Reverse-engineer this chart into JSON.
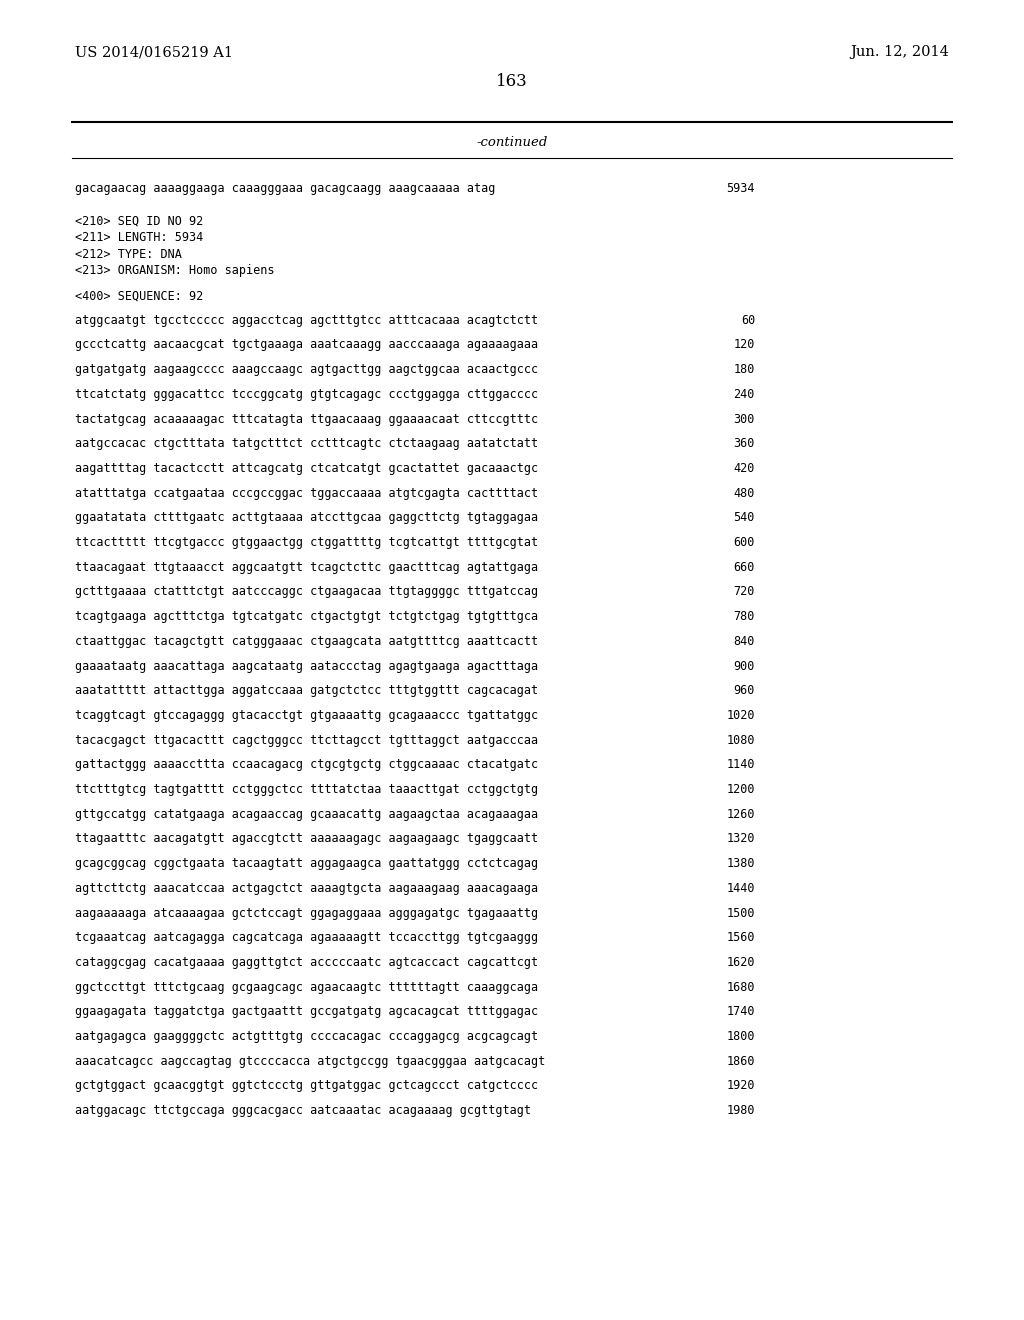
{
  "header_left": "US 2014/0165219 A1",
  "header_right": "Jun. 12, 2014",
  "page_number": "163",
  "continued_label": "-continued",
  "background_color": "#ffffff",
  "text_color": "#000000",
  "font_size": 8.5,
  "header_font_size": 10.5,
  "page_num_font_size": 12,
  "continued_font_size": 9.5,
  "content": [
    {
      "text": "gacagaacag aaaaggaaga caaagggaaa gacagcaagg aaagcaaaaa atag",
      "num": "5934",
      "type": "seq"
    },
    {
      "text": "",
      "type": "blank"
    },
    {
      "text": "",
      "type": "blank"
    },
    {
      "text": "<210> SEQ ID NO 92",
      "type": "meta"
    },
    {
      "text": "<211> LENGTH: 5934",
      "type": "meta"
    },
    {
      "text": "<212> TYPE: DNA",
      "type": "meta"
    },
    {
      "text": "<213> ORGANISM: Homo sapiens",
      "type": "meta"
    },
    {
      "text": "",
      "type": "blank"
    },
    {
      "text": "<400> SEQUENCE: 92",
      "type": "meta"
    },
    {
      "text": "",
      "type": "blank"
    },
    {
      "text": "atggcaatgt tgcctccccc aggacctcag agctttgtcc atttcacaaa acagtctctt",
      "num": "60",
      "type": "seq"
    },
    {
      "text": "",
      "type": "blank"
    },
    {
      "text": "gccctcattg aacaacgcat tgctgaaaga aaatcaaagg aacccaaaga agaaaagaaa",
      "num": "120",
      "type": "seq"
    },
    {
      "text": "",
      "type": "blank"
    },
    {
      "text": "gatgatgatg aagaagcccc aaagccaagc agtgacttgg aagctggcaa acaactgccc",
      "num": "180",
      "type": "seq"
    },
    {
      "text": "",
      "type": "blank"
    },
    {
      "text": "ttcatctatg gggacattcc tcccggcatg gtgtcagagc ccctggagga cttggacccc",
      "num": "240",
      "type": "seq"
    },
    {
      "text": "",
      "type": "blank"
    },
    {
      "text": "tactatgcag acaaaaagac tttcatagta ttgaacaaag ggaaaacaat cttccgtttc",
      "num": "300",
      "type": "seq"
    },
    {
      "text": "",
      "type": "blank"
    },
    {
      "text": "aatgccacac ctgctttata tatgctttct cctttcagtc ctctaagaag aatatctatt",
      "num": "360",
      "type": "seq"
    },
    {
      "text": "",
      "type": "blank"
    },
    {
      "text": "aagattttag tacactcctt attcagcatg ctcatcatgt gcactattet gacaaactgc",
      "num": "420",
      "type": "seq"
    },
    {
      "text": "",
      "type": "blank"
    },
    {
      "text": "atatttatga ccatgaataa cccgccggac tggaccaaaa atgtcgagta cacttttact",
      "num": "480",
      "type": "seq"
    },
    {
      "text": "",
      "type": "blank"
    },
    {
      "text": "ggaatatata cttttgaatc acttgtaaaa atccttgcaa gaggcttctg tgtaggagaa",
      "num": "540",
      "type": "seq"
    },
    {
      "text": "",
      "type": "blank"
    },
    {
      "text": "ttcacttttt ttcgtgaccc gtggaactgg ctggattttg tcgtcattgt ttttgcgtat",
      "num": "600",
      "type": "seq"
    },
    {
      "text": "",
      "type": "blank"
    },
    {
      "text": "ttaacagaat ttgtaaacct aggcaatgtt tcagctcttc gaactttcag agtattgaga",
      "num": "660",
      "type": "seq"
    },
    {
      "text": "",
      "type": "blank"
    },
    {
      "text": "gctttgaaaa ctatttctgt aatcccaggc ctgaagacaa ttgtaggggc tttgatccag",
      "num": "720",
      "type": "seq"
    },
    {
      "text": "",
      "type": "blank"
    },
    {
      "text": "tcagtgaaga agctttctga tgtcatgatc ctgactgtgt tctgtctgag tgtgtttgca",
      "num": "780",
      "type": "seq"
    },
    {
      "text": "",
      "type": "blank"
    },
    {
      "text": "ctaattggac tacagctgtt catgggaaac ctgaagcata aatgttttcg aaattcactt",
      "num": "840",
      "type": "seq"
    },
    {
      "text": "",
      "type": "blank"
    },
    {
      "text": "gaaaataatg aaacattaga aagcataatg aataccctag agagtgaaga agactttaga",
      "num": "900",
      "type": "seq"
    },
    {
      "text": "",
      "type": "blank"
    },
    {
      "text": "aaatattttt attacttgga aggatccaaa gatgctctcc tttgtggttt cagcacagat",
      "num": "960",
      "type": "seq"
    },
    {
      "text": "",
      "type": "blank"
    },
    {
      "text": "tcaggtcagt gtccagaggg gtacacctgt gtgaaaattg gcagaaaccc tgattatggc",
      "num": "1020",
      "type": "seq"
    },
    {
      "text": "",
      "type": "blank"
    },
    {
      "text": "tacacgagct ttgacacttt cagctgggcc ttcttagcct tgtttaggct aatgacccaa",
      "num": "1080",
      "type": "seq"
    },
    {
      "text": "",
      "type": "blank"
    },
    {
      "text": "gattactggg aaaaccttta ccaacagacg ctgcgtgctg ctggcaaaac ctacatgatc",
      "num": "1140",
      "type": "seq"
    },
    {
      "text": "",
      "type": "blank"
    },
    {
      "text": "ttctttgtcg tagtgatttt cctgggctcc ttttatctaa taaacttgat cctggctgtg",
      "num": "1200",
      "type": "seq"
    },
    {
      "text": "",
      "type": "blank"
    },
    {
      "text": "gttgccatgg catatgaaga acagaaccag gcaaacattg aagaagctaa acagaaagaa",
      "num": "1260",
      "type": "seq"
    },
    {
      "text": "",
      "type": "blank"
    },
    {
      "text": "ttagaatttc aacagatgtt agaccgtctt aaaaaagagc aagaagaagc tgaggcaatt",
      "num": "1320",
      "type": "seq"
    },
    {
      "text": "",
      "type": "blank"
    },
    {
      "text": "gcagcggcag cggctgaata tacaagtatt aggagaagca gaattatggg cctctcagag",
      "num": "1380",
      "type": "seq"
    },
    {
      "text": "",
      "type": "blank"
    },
    {
      "text": "agttcttctg aaacatccaa actgagctct aaaagtgcta aagaaagaag aaacagaaga",
      "num": "1440",
      "type": "seq"
    },
    {
      "text": "",
      "type": "blank"
    },
    {
      "text": "aagaaaaaga atcaaaagaa gctctccagt ggagaggaaa agggagatgc tgagaaattg",
      "num": "1500",
      "type": "seq"
    },
    {
      "text": "",
      "type": "blank"
    },
    {
      "text": "tcgaaatcag aatcagagga cagcatcaga agaaaaagtt tccaccttgg tgtcgaaggg",
      "num": "1560",
      "type": "seq"
    },
    {
      "text": "",
      "type": "blank"
    },
    {
      "text": "cataggcgag cacatgaaaa gaggttgtct acccccaatc agtcaccact cagcattcgt",
      "num": "1620",
      "type": "seq"
    },
    {
      "text": "",
      "type": "blank"
    },
    {
      "text": "ggctccttgt tttctgcaag gcgaagcagc agaacaagtc ttttttagtt caaaggcaga",
      "num": "1680",
      "type": "seq"
    },
    {
      "text": "",
      "type": "blank"
    },
    {
      "text": "ggaagagata taggatctga gactgaattt gccgatgatg agcacagcat ttttggagac",
      "num": "1740",
      "type": "seq"
    },
    {
      "text": "",
      "type": "blank"
    },
    {
      "text": "aatgagagca gaaggggctc actgtttgtg ccccacagac cccaggagcg acgcagcagt",
      "num": "1800",
      "type": "seq"
    },
    {
      "text": "",
      "type": "blank"
    },
    {
      "text": "aaacatcagcc aagccagtag gtccccacca atgctgccgg tgaacgggaa aatgcacagt",
      "num": "1860",
      "type": "seq"
    },
    {
      "text": "",
      "type": "blank"
    },
    {
      "text": "gctgtggact gcaacggtgt ggtctccctg gttgatggac gctcagccct catgctcccc",
      "num": "1920",
      "type": "seq"
    },
    {
      "text": "",
      "type": "blank"
    },
    {
      "text": "aatggacagc ttctgccaga gggcacgacc aatcaaatac acagaaaag gcgttgtagt",
      "num": "1980",
      "type": "seq"
    }
  ]
}
